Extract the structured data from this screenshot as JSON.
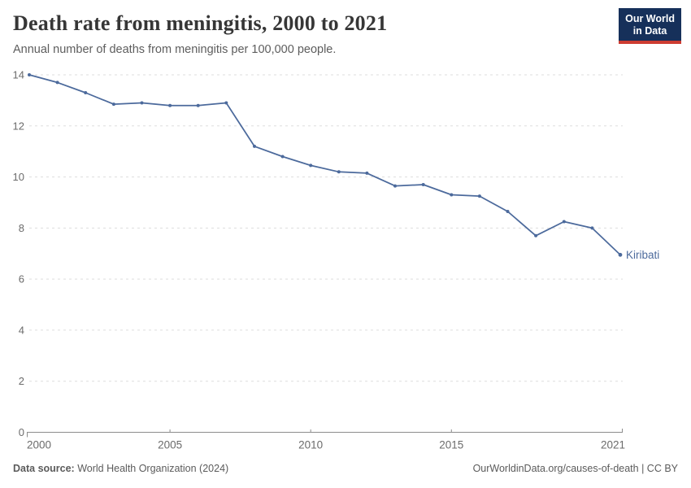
{
  "header": {
    "title": "Death rate from meningitis, 2000 to 2021",
    "subtitle": "Annual number of deaths from meningitis per 100,000 people.",
    "logo": {
      "line1": "Our World",
      "line2": "in Data"
    }
  },
  "chart_data": {
    "type": "line",
    "title": "Death rate from meningitis, 2000 to 2021",
    "xlabel": "",
    "ylabel": "",
    "x": [
      2000,
      2001,
      2002,
      2003,
      2004,
      2005,
      2006,
      2007,
      2008,
      2009,
      2010,
      2011,
      2012,
      2013,
      2014,
      2015,
      2016,
      2017,
      2018,
      2019,
      2020,
      2021
    ],
    "series": [
      {
        "name": "Kiribati",
        "color": "#4C6A9C",
        "values": [
          14.0,
          13.7,
          13.3,
          12.85,
          12.9,
          12.8,
          12.8,
          12.9,
          11.2,
          10.8,
          10.45,
          10.2,
          10.15,
          9.65,
          9.7,
          9.3,
          9.25,
          8.65,
          7.7,
          8.25,
          8.0,
          6.95
        ]
      }
    ],
    "ylim": [
      0,
      14
    ],
    "yticks": [
      0,
      2,
      4,
      6,
      8,
      10,
      12,
      14
    ],
    "xticks": [
      2000,
      2005,
      2010,
      2015,
      2021
    ],
    "grid": "horizontal-dashed",
    "legend_position": "line-end-label"
  },
  "footer": {
    "source_label": "Data source:",
    "source_value": "World Health Organization (2024)",
    "credit": "OurWorldinData.org/causes-of-death | CC BY"
  },
  "colors": {
    "line": "#4C6A9C",
    "logo_bg": "#16305A",
    "logo_accent": "#CD3C32",
    "grid": "#DDDDDD",
    "axis": "#8C8C8C",
    "tick_text": "#6B6B6B",
    "title_text": "#363636",
    "subtitle_text": "#5D5D5D",
    "footer_text": "#5B5B5B"
  }
}
